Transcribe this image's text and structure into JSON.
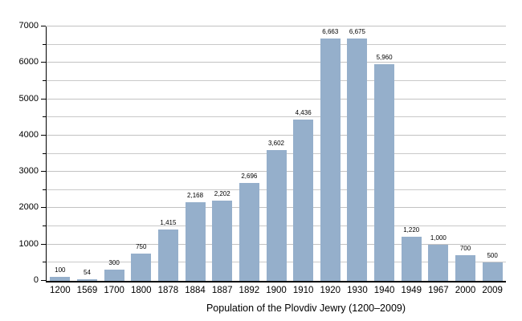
{
  "title": "Population of the Plovdiv Jewry (1200–2009)",
  "colors": {
    "bar": "#95AFCB",
    "gridline_minor": "#c9c9c9",
    "gridline_major": "#c2c2c2",
    "axis": "#000000",
    "background": "#ffffff",
    "text": "#000000"
  },
  "chart_data": {
    "type": "bar",
    "title": "Population of the Plovdiv Jewry (1200–2009)",
    "xlabel": "",
    "ylabel": "",
    "categories": [
      "1200",
      "1569",
      "1700",
      "1800",
      "1878",
      "1884",
      "1887",
      "1892",
      "1900",
      "1910",
      "1920",
      "1930",
      "1940",
      "1949",
      "1967",
      "2000",
      "2009"
    ],
    "values": [
      100,
      54,
      300,
      750,
      1415,
      2168,
      2202,
      2696,
      3602,
      4436,
      6663,
      6675,
      5960,
      1220,
      1000,
      700,
      500
    ],
    "value_labels": [
      "100",
      "54",
      "300",
      "750",
      "1,415",
      "2,168",
      "2,202",
      "2,696",
      "3,602",
      "4,436",
      "6,663",
      "6,675",
      "5,960",
      "1,220",
      "1,000",
      "700",
      "500"
    ],
    "ylim": [
      0,
      7000
    ],
    "y_major_ticks": [
      0,
      1000,
      2000,
      3000,
      4000,
      5000,
      6000,
      7000
    ],
    "y_minor_step": 500,
    "grid": true,
    "legend": false
  }
}
